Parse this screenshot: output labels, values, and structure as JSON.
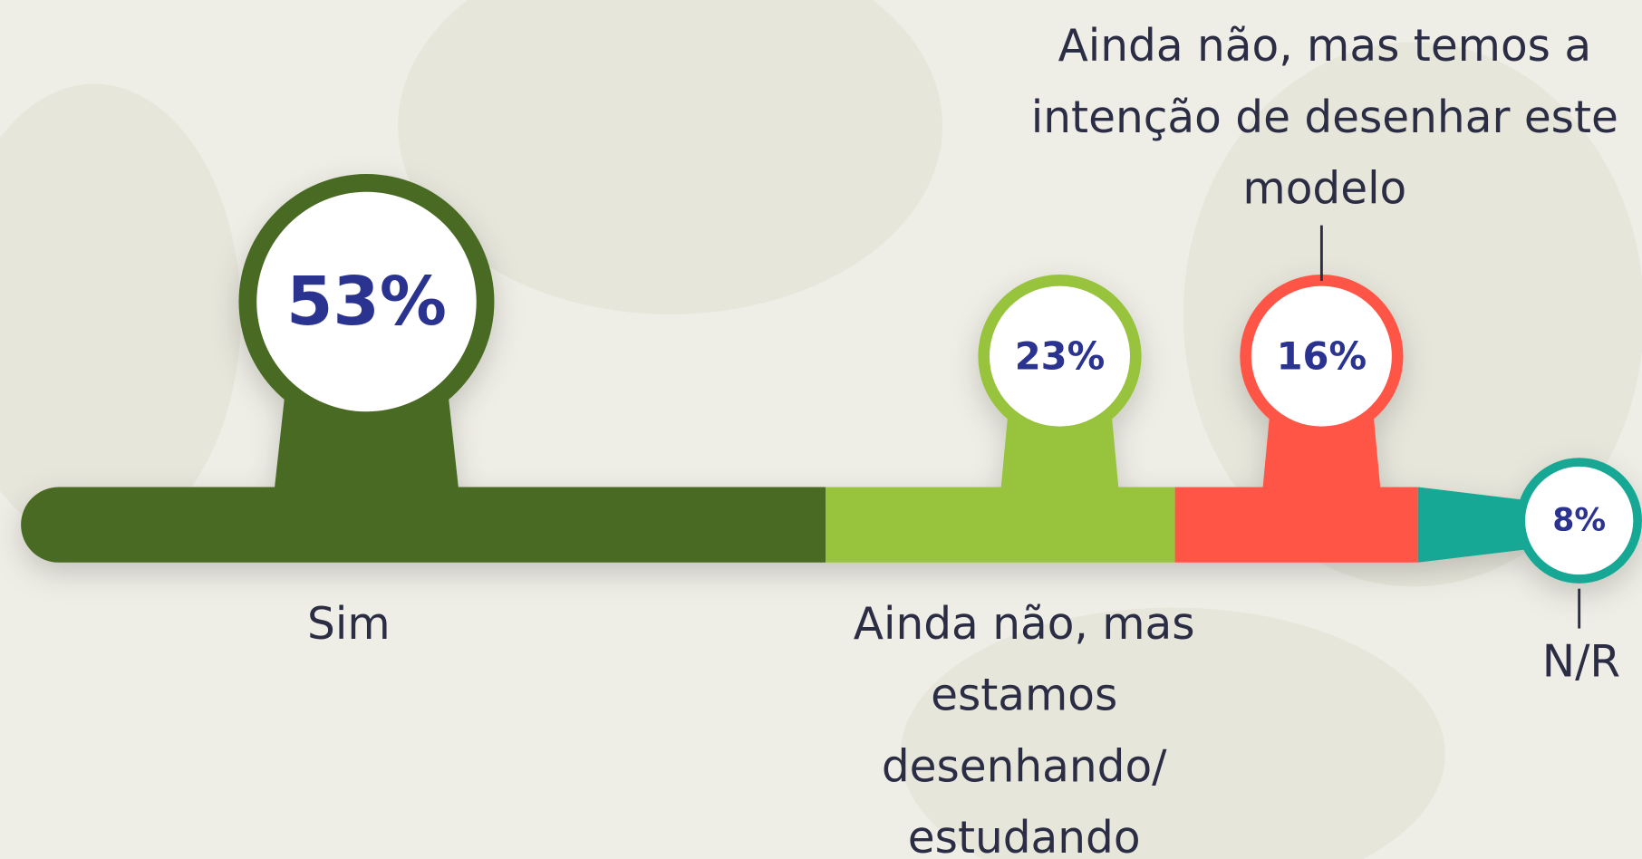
{
  "chart_data": {
    "type": "stacked-bubble-bar",
    "categories": [
      "Sim",
      "Ainda não, mas estamos desenhando/ estudando",
      "Ainda não, mas temos a intenção de desenhar este modelo",
      "N/R"
    ],
    "values": [
      53,
      23,
      16,
      8
    ],
    "value_labels": [
      "53%",
      "23%",
      "16%",
      "8%"
    ],
    "colors": [
      "#4a6a24",
      "#98c33e",
      "#ff5546",
      "#16a894"
    ]
  }
}
